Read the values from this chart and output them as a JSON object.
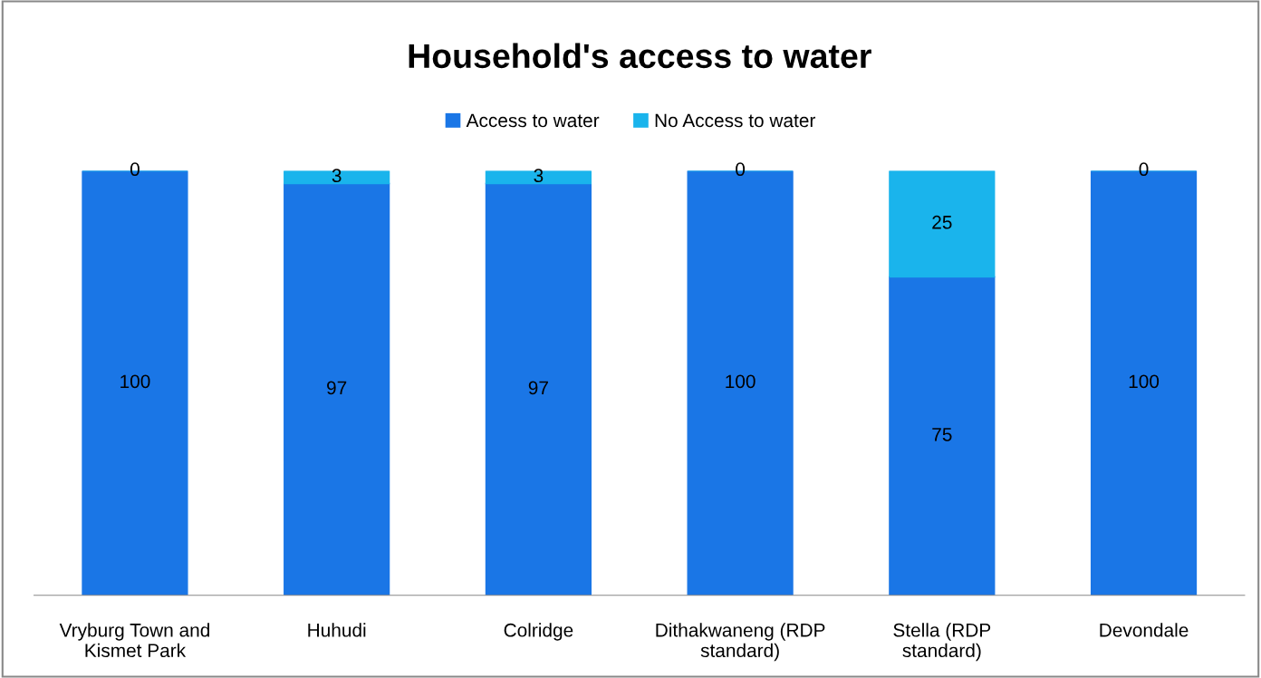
{
  "chart_data": {
    "type": "bar",
    "title": "Household's access to water",
    "stacked": true,
    "data_labels": true,
    "legend": "top",
    "grid": false,
    "tick_labels": "x",
    "categories": [
      "Vryburg Town and Kismet Park",
      "Huhudi",
      "Colridge",
      "Dithakwaneng (RDP standard)",
      "Stella (RDP standard)",
      "Devondale"
    ],
    "series": [
      {
        "name": "Access to water",
        "color": "#1a76e6",
        "values": [
          100,
          97,
          97,
          100,
          75,
          100
        ]
      },
      {
        "name": "No Access to water",
        "color": "#1ab4ec",
        "values": [
          0,
          3,
          3,
          0,
          25,
          0
        ]
      }
    ]
  }
}
